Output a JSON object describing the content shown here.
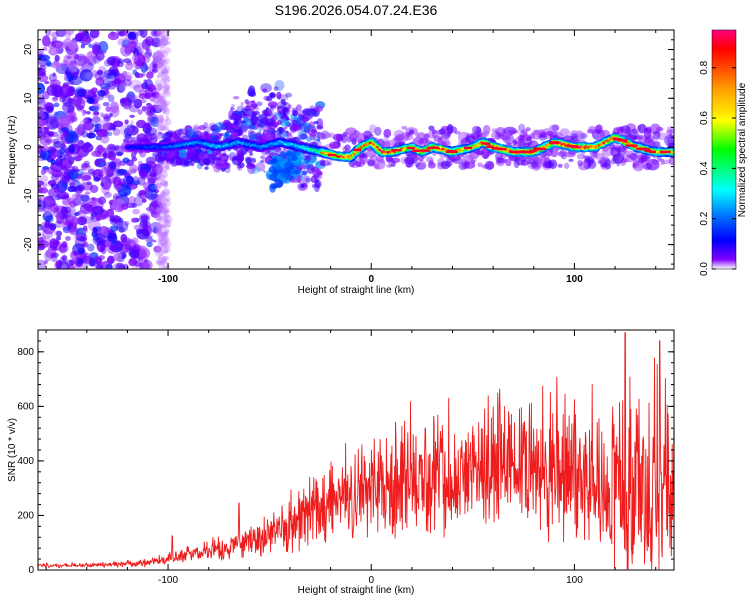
{
  "figure_title": "S196.2026.054.07.24.E36",
  "chart_data": [
    {
      "type": "heatmap",
      "title": "",
      "xlabel": "Height of straight line (km)",
      "ylabel": "Frequency (Hz)",
      "xlim": [
        -164,
        149
      ],
      "ylim": [
        -25,
        24
      ],
      "xticks": [
        -100,
        0,
        100
      ],
      "yticks": [
        -20,
        -10,
        0,
        10,
        20
      ],
      "colorbar": {
        "label": "Normalized spectral amplitude",
        "range": [
          0,
          0.95
        ],
        "ticks": [
          0.0,
          0.2,
          0.4,
          0.6,
          0.8
        ],
        "colormap": [
          "#ff0080",
          "#ff0000",
          "#ffa000",
          "#ffff00",
          "#00ff00",
          "#00ffff",
          "#0070ff",
          "#0000ff",
          "#8000ff",
          "#ffffff"
        ]
      },
      "features": [
        {
          "name": "noise",
          "x_range": [
            -164,
            -105
          ],
          "freq_range": [
            -25,
            24
          ],
          "amplitude": 0.05
        },
        {
          "name": "scatter",
          "x_range": [
            -105,
            -25
          ],
          "freq_range": [
            -8,
            10
          ],
          "amplitude": 0.2
        },
        {
          "name": "ridge",
          "x_range": [
            -25,
            149
          ],
          "freq": 0,
          "amplitude": 0.9
        }
      ],
      "ridge": {
        "x": [
          -120,
          -100,
          -85,
          -75,
          -65,
          -55,
          -45,
          -35,
          -25,
          -15,
          -10,
          -5,
          0,
          5,
          10,
          20,
          25,
          30,
          40,
          50,
          55,
          60,
          70,
          80,
          85,
          90,
          100,
          110,
          115,
          120,
          130,
          140,
          149
        ],
        "freq": [
          0,
          0,
          1,
          0,
          1,
          0,
          1,
          0,
          -1,
          -2,
          -2,
          0,
          1,
          -1,
          -1,
          0,
          -1,
          0,
          -1,
          0,
          1,
          0,
          -1,
          -1,
          0,
          1,
          0,
          0,
          1,
          2,
          0,
          -1,
          -1
        ],
        "amp": [
          0.2,
          0.35,
          0.45,
          0.5,
          0.45,
          0.4,
          0.5,
          0.55,
          0.75,
          0.9,
          0.8,
          0.85,
          0.85,
          0.95,
          0.9,
          0.7,
          0.85,
          0.9,
          0.85,
          0.7,
          0.85,
          0.95,
          0.9,
          0.95,
          0.8,
          0.9,
          0.95,
          0.9,
          0.85,
          0.95,
          0.8,
          0.7,
          0.75
        ]
      }
    },
    {
      "type": "line",
      "title": "",
      "xlabel": "Height of straight line (km)",
      "ylabel": "SNR (10 * v/v)",
      "xlim": [
        -164,
        149
      ],
      "ylim": [
        0,
        880
      ],
      "xticks": [
        -100,
        0,
        100
      ],
      "yticks": [
        0,
        200,
        400,
        600,
        800
      ],
      "series": [
        {
          "name": "SNR",
          "color": "#ee1c1c",
          "envelope": {
            "x": [
              -164,
              -130,
              -110,
              -100,
              -90,
              -80,
              -70,
              -60,
              -50,
              -40,
              -30,
              -20,
              -10,
              0,
              10,
              20,
              30,
              40,
              50,
              60,
              70,
              80,
              90,
              100,
              110,
              120,
              130,
              140,
              149
            ],
            "base": [
              15,
              18,
              25,
              40,
              55,
              70,
              85,
              100,
              120,
              150,
              190,
              230,
              270,
              300,
              320,
              330,
              340,
              350,
              360,
              370,
              370,
              360,
              350,
              350,
              330,
              300,
              280,
              260,
              250
            ],
            "spread": [
              8,
              10,
              15,
              20,
              30,
              45,
              60,
              80,
              100,
              120,
              140,
              160,
              180,
              200,
              220,
              230,
              240,
              250,
              260,
              260,
              260,
              270,
              280,
              300,
              320,
              360,
              380,
              400,
              420
            ]
          },
          "peaks": [
            {
              "x": -98,
              "y": 125
            },
            {
              "x": -65,
              "y": 245
            },
            {
              "x": 5,
              "y": 420
            },
            {
              "x": 60,
              "y": 600
            },
            {
              "x": 125,
              "y": 870
            },
            {
              "x": 142,
              "y": 840
            }
          ]
        }
      ]
    }
  ]
}
